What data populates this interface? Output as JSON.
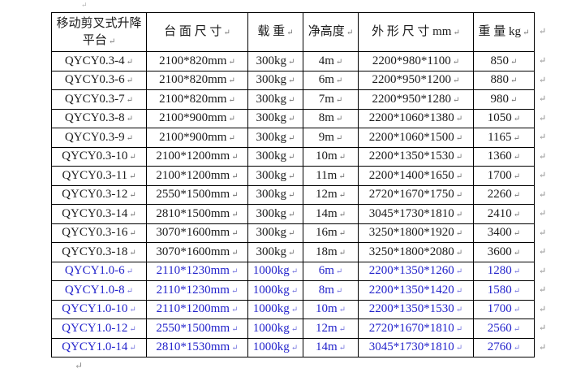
{
  "marks": {
    "paragraph": "↵"
  },
  "colors": {
    "border": "#000000",
    "black_row_text": "#1a1a1a",
    "blue_row_text": "#2323cb",
    "mark_gray": "#8a8a8a"
  },
  "table": {
    "headers": [
      {
        "label": "移动剪叉式升降平台"
      },
      {
        "label": "台 面 尺 寸"
      },
      {
        "label": "载 重"
      },
      {
        "label": "净高度"
      },
      {
        "label": "外 形 尺 寸 mm"
      },
      {
        "label": "重 量 kg"
      }
    ],
    "rows": [
      {
        "model": "QYCY0.3-4",
        "platform": "2100*820mm",
        "load": "300kg",
        "height": "4m",
        "dims": "2200*980*1100",
        "weight": "850",
        "color": "black"
      },
      {
        "model": "QYCY0.3-6",
        "platform": "2100*820mm",
        "load": "300kg",
        "height": "6m",
        "dims": "2200*950*1200",
        "weight": "880",
        "color": "black"
      },
      {
        "model": "QYCY0.3-7",
        "platform": "2100*820mm",
        "load": "300kg",
        "height": "7m",
        "dims": "2200*950*1280",
        "weight": "980",
        "color": "black"
      },
      {
        "model": "QYCY0.3-8",
        "platform": "2100*900mm",
        "load": "300kg",
        "height": "8m",
        "dims": "2200*1060*1380",
        "weight": "1050",
        "color": "black"
      },
      {
        "model": "QYCY0.3-9",
        "platform": "2100*900mm",
        "load": "300kg",
        "height": "9m",
        "dims": "2200*1060*1500",
        "weight": "1165",
        "color": "black"
      },
      {
        "model": "QYCY0.3-10",
        "platform": "2100*1200mm",
        "load": "300kg",
        "height": "10m",
        "dims": "2200*1350*1530",
        "weight": "1360",
        "color": "black"
      },
      {
        "model": "QYCY0.3-11",
        "platform": "2100*1200mm",
        "load": "300kg",
        "height": "11m",
        "dims": "2200*1400*1650",
        "weight": "1700",
        "color": "black"
      },
      {
        "model": "QYCY0.3-12",
        "platform": "2550*1500mm",
        "load": "300kg",
        "height": "12m",
        "dims": "2720*1670*1750",
        "weight": "2260",
        "color": "black"
      },
      {
        "model": "QYCY0.3-14",
        "platform": "2810*1500mm",
        "load": "300kg",
        "height": "14m",
        "dims": "3045*1730*1810",
        "weight": "2410",
        "color": "black"
      },
      {
        "model": "QYCY0.3-16",
        "platform": "3070*1600mm",
        "load": "300kg",
        "height": "16m",
        "dims": "3250*1800*1920",
        "weight": "3400",
        "color": "black"
      },
      {
        "model": "QYCY0.3-18",
        "platform": "3070*1600mm",
        "load": "300kg",
        "height": "18m",
        "dims": "3250*1800*2080",
        "weight": "3600",
        "color": "black"
      },
      {
        "model": "QYCY1.0-6",
        "platform": "2110*1230mm",
        "load": "1000kg",
        "height": "6m",
        "dims": "2200*1350*1260",
        "weight": "1280",
        "color": "blue"
      },
      {
        "model": "QYCY1.0-8",
        "platform": "2110*1230mm",
        "load": "1000kg",
        "height": "8m",
        "dims": "2200*1350*1420",
        "weight": "1580",
        "color": "blue"
      },
      {
        "model": "QYCY1.0-10",
        "platform": "2110*1200mm",
        "load": "1000kg",
        "height": "10m",
        "dims": "2200*1350*1530",
        "weight": "1700",
        "color": "blue"
      },
      {
        "model": "QYCY1.0-12",
        "platform": "2550*1500mm",
        "load": "1000kg",
        "height": "12m",
        "dims": "2720*1670*1810",
        "weight": "2560",
        "color": "blue"
      },
      {
        "model": "QYCY1.0-14",
        "platform": "2810*1530mm",
        "load": "1000kg",
        "height": "14m",
        "dims": "3045*1730*1810",
        "weight": "2760",
        "color": "blue"
      }
    ]
  }
}
